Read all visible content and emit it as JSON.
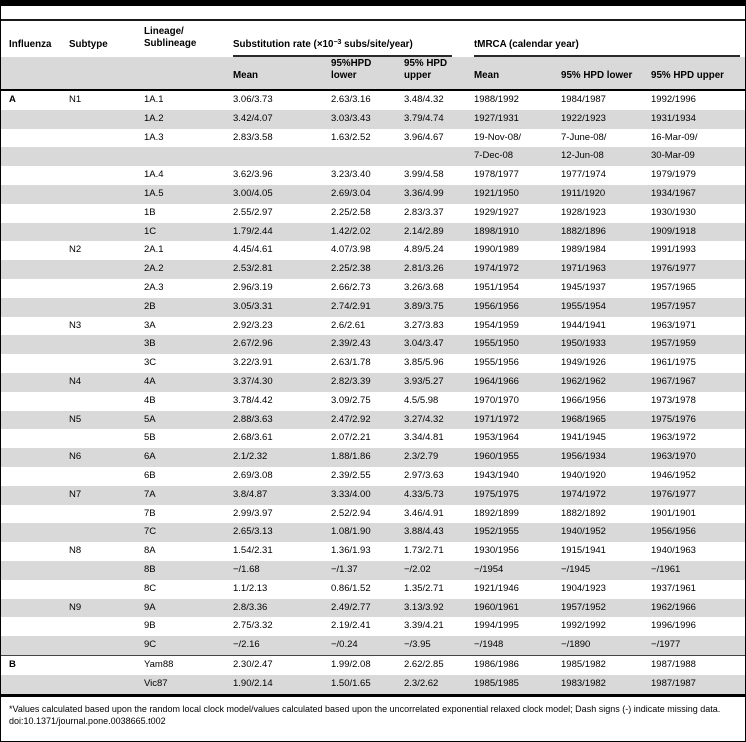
{
  "table": {
    "columns": {
      "influenza": "Influenza",
      "subtype": "Subtype",
      "lineage_line1": "Lineage/",
      "lineage_line2": "Sublineage"
    },
    "groups": {
      "subrate_pre": "Substitution rate (×10",
      "subrate_sup": "−3",
      "subrate_post": " subs/site/year)",
      "tmrca": "tMRCA (calendar year)"
    },
    "subheaders": {
      "rate_mean": "Mean",
      "rate_lower": "95%HPD lower",
      "rate_upper": "95% HPD upper",
      "t_mean": "Mean",
      "t_lower": "95% HPD lower",
      "t_upper": "95% HPD upper"
    },
    "rows": [
      {
        "influenza": "A",
        "subtype": "N1",
        "lineage": "1A.1",
        "rate_mean": "3.06/3.73",
        "rate_lower": "2.63/3.16",
        "rate_upper": "3.48/4.32",
        "t_mean": "1988/1992",
        "t_lower": "1984/1987",
        "t_upper": "1992/1996"
      },
      {
        "influenza": "",
        "subtype": "",
        "lineage": "1A.2",
        "rate_mean": "3.42/4.07",
        "rate_lower": "3.03/3.43",
        "rate_upper": "3.79/4.74",
        "t_mean": "1927/1931",
        "t_lower": "1922/1923",
        "t_upper": "1931/1934"
      },
      {
        "influenza": "",
        "subtype": "",
        "lineage": "1A.3",
        "rate_mean": "2.83/3.58",
        "rate_lower": "1.63/2.52",
        "rate_upper": "3.96/4.67",
        "t_mean": "19-Nov-08/",
        "t_lower": "7-June-08/",
        "t_upper": "16-Mar-09/"
      },
      {
        "influenza": "",
        "subtype": "",
        "lineage": "",
        "rate_mean": "",
        "rate_lower": "",
        "rate_upper": "",
        "t_mean": "7-Dec-08",
        "t_lower": "12-Jun-08",
        "t_upper": "30-Mar-09"
      },
      {
        "influenza": "",
        "subtype": "",
        "lineage": "1A.4",
        "rate_mean": "3.62/3.96",
        "rate_lower": "3.23/3.40",
        "rate_upper": "3.99/4.58",
        "t_mean": "1978/1977",
        "t_lower": "1977/1974",
        "t_upper": "1979/1979"
      },
      {
        "influenza": "",
        "subtype": "",
        "lineage": "1A.5",
        "rate_mean": "3.00/4.05",
        "rate_lower": "2.69/3.04",
        "rate_upper": "3.36/4.99",
        "t_mean": "1921/1950",
        "t_lower": "1911/1920",
        "t_upper": "1934/1967"
      },
      {
        "influenza": "",
        "subtype": "",
        "lineage": "1B",
        "rate_mean": "2.55/2.97",
        "rate_lower": "2.25/2.58",
        "rate_upper": "2.83/3.37",
        "t_mean": "1929/1927",
        "t_lower": "1928/1923",
        "t_upper": "1930/1930"
      },
      {
        "influenza": "",
        "subtype": "",
        "lineage": "1C",
        "rate_mean": "1.79/2.44",
        "rate_lower": "1.42/2.02",
        "rate_upper": "2.14/2.89",
        "t_mean": "1898/1910",
        "t_lower": "1882/1896",
        "t_upper": "1909/1918"
      },
      {
        "influenza": "",
        "subtype": "N2",
        "lineage": "2A.1",
        "rate_mean": "4.45/4.61",
        "rate_lower": "4.07/3.98",
        "rate_upper": "4.89/5.24",
        "t_mean": "1990/1989",
        "t_lower": "1989/1984",
        "t_upper": "1991/1993"
      },
      {
        "influenza": "",
        "subtype": "",
        "lineage": "2A.2",
        "rate_mean": "2.53/2.81",
        "rate_lower": "2.25/2.38",
        "rate_upper": "2.81/3.26",
        "t_mean": "1974/1972",
        "t_lower": "1971/1963",
        "t_upper": "1976/1977"
      },
      {
        "influenza": "",
        "subtype": "",
        "lineage": "2A.3",
        "rate_mean": "2.96/3.19",
        "rate_lower": "2.66/2.73",
        "rate_upper": "3.26/3.68",
        "t_mean": "1951/1954",
        "t_lower": "1945/1937",
        "t_upper": "1957/1965"
      },
      {
        "influenza": "",
        "subtype": "",
        "lineage": "2B",
        "rate_mean": "3.05/3.31",
        "rate_lower": "2.74/2.91",
        "rate_upper": "3.89/3.75",
        "t_mean": "1956/1956",
        "t_lower": "1955/1954",
        "t_upper": "1957/1957"
      },
      {
        "influenza": "",
        "subtype": "N3",
        "lineage": "3A",
        "rate_mean": "2.92/3.23",
        "rate_lower": "2.6/2.61",
        "rate_upper": "3.27/3.83",
        "t_mean": "1954/1959",
        "t_lower": "1944/1941",
        "t_upper": "1963/1971"
      },
      {
        "influenza": "",
        "subtype": "",
        "lineage": "3B",
        "rate_mean": "2.67/2.96",
        "rate_lower": "2.39/2.43",
        "rate_upper": "3.04/3.47",
        "t_mean": "1955/1950",
        "t_lower": "1950/1933",
        "t_upper": "1957/1959"
      },
      {
        "influenza": "",
        "subtype": "",
        "lineage": "3C",
        "rate_mean": "3.22/3.91",
        "rate_lower": "2.63/1.78",
        "rate_upper": "3.85/5.96",
        "t_mean": "1955/1956",
        "t_lower": "1949/1926",
        "t_upper": "1961/1975"
      },
      {
        "influenza": "",
        "subtype": "N4",
        "lineage": "4A",
        "rate_mean": "3.37/4.30",
        "rate_lower": "2.82/3.39",
        "rate_upper": "3.93/5.27",
        "t_mean": "1964/1966",
        "t_lower": "1962/1962",
        "t_upper": "1967/1967"
      },
      {
        "influenza": "",
        "subtype": "",
        "lineage": "4B",
        "rate_mean": "3.78/4.42",
        "rate_lower": "3.09/2.75",
        "rate_upper": "4.5/5.98",
        "t_mean": "1970/1970",
        "t_lower": "1966/1956",
        "t_upper": "1973/1978"
      },
      {
        "influenza": "",
        "subtype": "N5",
        "lineage": "5A",
        "rate_mean": "2.88/3.63",
        "rate_lower": "2.47/2.92",
        "rate_upper": "3.27/4.32",
        "t_mean": "1971/1972",
        "t_lower": "1968/1965",
        "t_upper": "1975/1976"
      },
      {
        "influenza": "",
        "subtype": "",
        "lineage": "5B",
        "rate_mean": "2.68/3.61",
        "rate_lower": "2.07/2.21",
        "rate_upper": "3.34/4.81",
        "t_mean": "1953/1964",
        "t_lower": "1941/1945",
        "t_upper": "1963/1972"
      },
      {
        "influenza": "",
        "subtype": "N6",
        "lineage": "6A",
        "rate_mean": "2.1/2.32",
        "rate_lower": "1.88/1.86",
        "rate_upper": "2.3/2.79",
        "t_mean": "1960/1955",
        "t_lower": "1956/1934",
        "t_upper": "1963/1970"
      },
      {
        "influenza": "",
        "subtype": "",
        "lineage": "6B",
        "rate_mean": "2.69/3.08",
        "rate_lower": "2.39/2.55",
        "rate_upper": "2.97/3.63",
        "t_mean": "1943/1940",
        "t_lower": "1940/1920",
        "t_upper": "1946/1952"
      },
      {
        "influenza": "",
        "subtype": "N7",
        "lineage": "7A",
        "rate_mean": "3.8/4.87",
        "rate_lower": "3.33/4.00",
        "rate_upper": "4.33/5.73",
        "t_mean": "1975/1975",
        "t_lower": "1974/1972",
        "t_upper": "1976/1977"
      },
      {
        "influenza": "",
        "subtype": "",
        "lineage": "7B",
        "rate_mean": "2.99/3.97",
        "rate_lower": "2.52/2.94",
        "rate_upper": "3.46/4.91",
        "t_mean": "1892/1899",
        "t_lower": "1882/1892",
        "t_upper": "1901/1901"
      },
      {
        "influenza": "",
        "subtype": "",
        "lineage": "7C",
        "rate_mean": "2.65/3.13",
        "rate_lower": "1.08/1.90",
        "rate_upper": "3.88/4.43",
        "t_mean": "1952/1955",
        "t_lower": "1940/1952",
        "t_upper": "1956/1956"
      },
      {
        "influenza": "",
        "subtype": "N8",
        "lineage": "8A",
        "rate_mean": "1.54/2.31",
        "rate_lower": "1.36/1.93",
        "rate_upper": "1.73/2.71",
        "t_mean": "1930/1956",
        "t_lower": "1915/1941",
        "t_upper": "1940/1963"
      },
      {
        "influenza": "",
        "subtype": "",
        "lineage": "8B",
        "rate_mean": "−/1.68",
        "rate_lower": "−/1.37",
        "rate_upper": "−/2.02",
        "t_mean": "−/1954",
        "t_lower": "−/1945",
        "t_upper": "−/1961"
      },
      {
        "influenza": "",
        "subtype": "",
        "lineage": "8C",
        "rate_mean": "1.1/2.13",
        "rate_lower": "0.86/1.52",
        "rate_upper": "1.35/2.71",
        "t_mean": "1921/1946",
        "t_lower": "1904/1923",
        "t_upper": "1937/1961"
      },
      {
        "influenza": "",
        "subtype": "N9",
        "lineage": "9A",
        "rate_mean": "2.8/3.36",
        "rate_lower": "2.49/2.77",
        "rate_upper": "3.13/3.92",
        "t_mean": "1960/1961",
        "t_lower": "1957/1952",
        "t_upper": "1962/1966"
      },
      {
        "influenza": "",
        "subtype": "",
        "lineage": "9B",
        "rate_mean": "2.75/3.32",
        "rate_lower": "2.19/2.41",
        "rate_upper": "3.39/4.21",
        "t_mean": "1994/1995",
        "t_lower": "1992/1992",
        "t_upper": "1996/1996"
      },
      {
        "influenza": "",
        "subtype": "",
        "lineage": "9C",
        "rate_mean": "−/2.16",
        "rate_lower": "−/0.24",
        "rate_upper": "−/3.95",
        "t_mean": "−/1948",
        "t_lower": "−/1890",
        "t_upper": "−/1977"
      },
      {
        "influenza": "B",
        "subtype": "",
        "lineage": "Yam88",
        "rate_mean": "2.30/2.47",
        "rate_lower": "1.99/2.08",
        "rate_upper": "2.62/2.85",
        "t_mean": "1986/1986",
        "t_lower": "1985/1982",
        "t_upper": "1987/1988"
      },
      {
        "influenza": "",
        "subtype": "",
        "lineage": "Vic87",
        "rate_mean": "1.90/2.14",
        "rate_lower": "1.50/1.65",
        "rate_upper": "2.3/2.62",
        "t_mean": "1985/1985",
        "t_lower": "1983/1982",
        "t_upper": "1987/1987"
      }
    ]
  },
  "footnote": {
    "text": "*Values calculated based upon the random local clock model/values calculated based upon the uncorrelated exponential relaxed clock model; Dash signs (-) indicate missing data.",
    "doi": "doi:10.1371/journal.pone.0038665.t002"
  },
  "colors": {
    "row_shade": "#d9d9d9",
    "rule_dark": "#000000",
    "rule_gray": "#2a2a2a"
  }
}
